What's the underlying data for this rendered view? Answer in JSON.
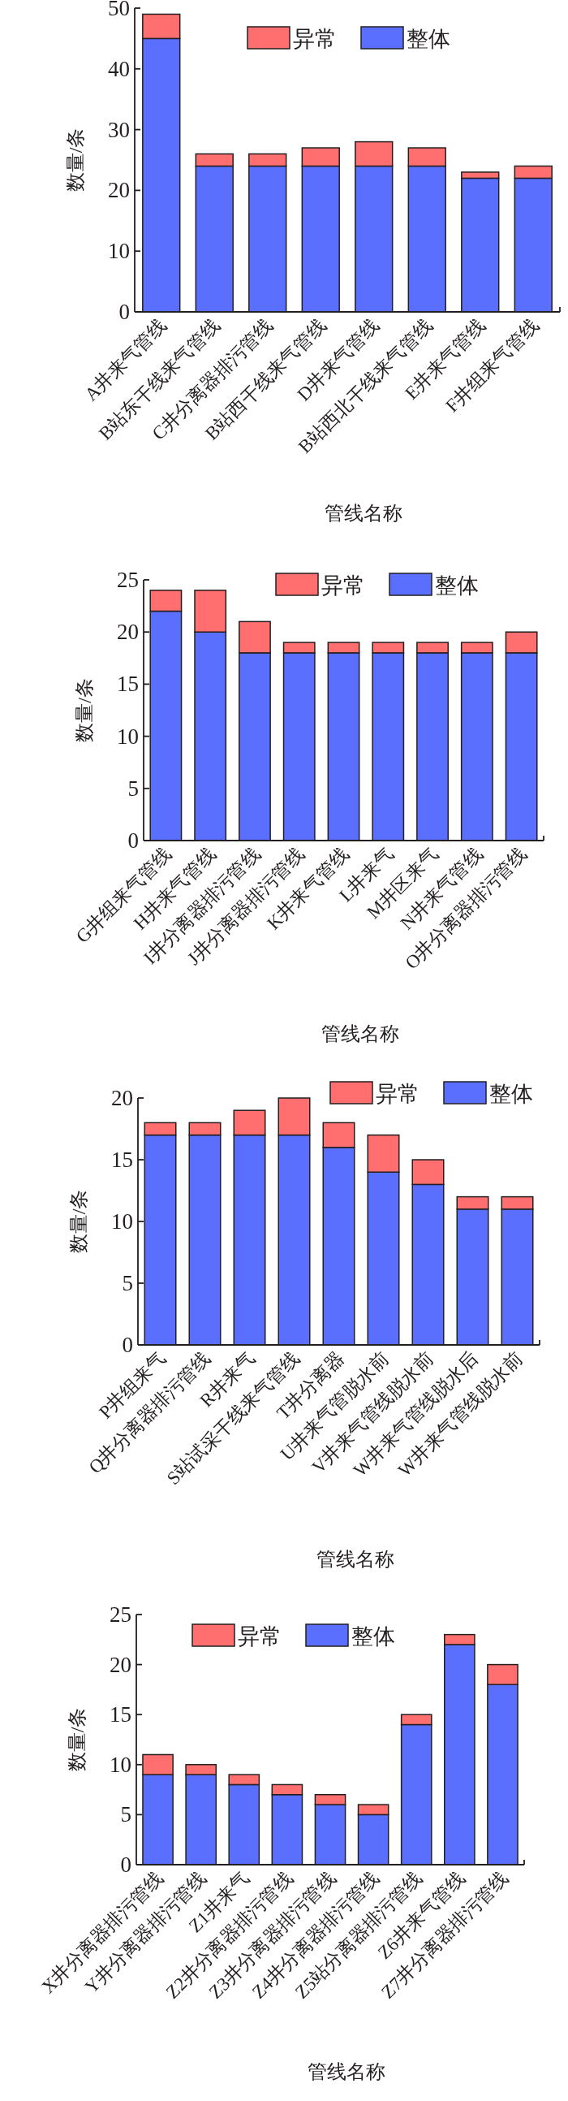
{
  "chart_data": [
    {
      "type": "bar",
      "stacked": true,
      "categories": [
        "A井来气管线",
        "B站东干线来气管线",
        "C井分离器排污管线",
        "B站西干线来气管线",
        "D井来气管线",
        "B站西北干线来气管线",
        "E井来气管线",
        "F井组来气管线"
      ],
      "series": [
        {
          "name": "整体",
          "color": "#5b6fff",
          "values": [
            45,
            24,
            24,
            24,
            24,
            24,
            22,
            22
          ]
        },
        {
          "name": "异常",
          "color": "#ff6f6f",
          "values": [
            4,
            2,
            2,
            3,
            4,
            3,
            1,
            2
          ]
        }
      ],
      "ylim": [
        0,
        50
      ],
      "yticks": [
        0,
        10,
        20,
        30,
        40,
        50
      ],
      "xlabel": "管线名称",
      "ylabel": "数量/条",
      "legend": "top right"
    },
    {
      "type": "bar",
      "stacked": true,
      "categories": [
        "G井组来气管线",
        "H井来气管线",
        "I井分离器排污管线",
        "J井分离器排污管线",
        "K井来气管线",
        "L井来气",
        "M井区来气",
        "N井来气管线",
        "O井分离器排污管线"
      ],
      "series": [
        {
          "name": "整体",
          "color": "#5b6fff",
          "values": [
            22,
            20,
            18,
            18,
            18,
            18,
            18,
            18,
            18
          ]
        },
        {
          "name": "异常",
          "color": "#ff6f6f",
          "values": [
            2,
            4,
            3,
            1,
            1,
            1,
            1,
            1,
            2
          ]
        }
      ],
      "ylim": [
        0,
        25
      ],
      "yticks": [
        0,
        5,
        10,
        15,
        20,
        25
      ],
      "xlabel": "管线名称",
      "ylabel": "数量/条",
      "legend": "top right"
    },
    {
      "type": "bar",
      "stacked": true,
      "categories": [
        "P井组来气",
        "Q井分离器排污管线",
        "R井来气",
        "S站试采干线来气管线",
        "T井分离器",
        "U井来气管脱水前",
        "V井来气管线脱水前",
        "W井来气管线脱水后",
        "W井来气管线脱水前"
      ],
      "series": [
        {
          "name": "整体",
          "color": "#5b6fff",
          "values": [
            17,
            17,
            17,
            17,
            16,
            14,
            13,
            11,
            11
          ]
        },
        {
          "name": "异常",
          "color": "#ff6f6f",
          "values": [
            1,
            1,
            2,
            3,
            2,
            3,
            2,
            1,
            1
          ]
        }
      ],
      "ylim": [
        0,
        20
      ],
      "yticks": [
        0,
        5,
        10,
        15,
        20
      ],
      "xlabel": "管线名称",
      "ylabel": "数量/条",
      "legend": "top right"
    },
    {
      "type": "bar",
      "stacked": true,
      "categories": [
        "X井分离器排污管线",
        "Y井分离器排污管线",
        "Z1井来气",
        "Z2井分离器排污管线",
        "Z3井分离器排污管线",
        "Z4井分离器排污管线",
        "Z5站分离器排污管线",
        "Z6井来气管线",
        "Z7井分离器排污管线"
      ],
      "series": [
        {
          "name": "整体",
          "color": "#5b6fff",
          "values": [
            9,
            9,
            8,
            7,
            6,
            5,
            14,
            22,
            18
          ]
        },
        {
          "name": "异常",
          "color": "#ff6f6f",
          "values": [
            2,
            1,
            1,
            1,
            1,
            1,
            1,
            1,
            2
          ]
        }
      ],
      "ylim": [
        0,
        25
      ],
      "yticks": [
        0,
        5,
        10,
        15,
        20,
        25
      ],
      "xlabel": "管线名称",
      "ylabel": "数量/条",
      "legend": "top"
    }
  ]
}
